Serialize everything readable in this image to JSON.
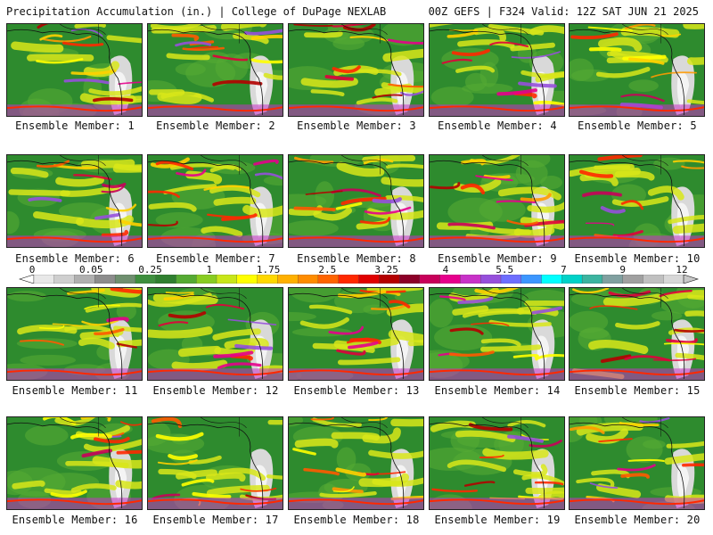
{
  "header": {
    "left": "Precipitation Accumulation (in.) | College of DuPage NEXLAB",
    "right": "00Z GEFS | F324 Valid: 12Z SAT JUN 21 2025"
  },
  "panels": [
    {
      "caption": "Ensemble Member: 1"
    },
    {
      "caption": "Ensemble Member: 2"
    },
    {
      "caption": "Ensemble Member: 3"
    },
    {
      "caption": "Ensemble Member: 4"
    },
    {
      "caption": "Ensemble Member: 5"
    },
    {
      "caption": "Ensemble Member: 6"
    },
    {
      "caption": "Ensemble Member: 7"
    },
    {
      "caption": "Ensemble Member: 8"
    },
    {
      "caption": "Ensemble Member: 9"
    },
    {
      "caption": "Ensemble Member: 10"
    },
    {
      "caption": "Ensemble Member: 11"
    },
    {
      "caption": "Ensemble Member: 12"
    },
    {
      "caption": "Ensemble Member: 13"
    },
    {
      "caption": "Ensemble Member: 14"
    },
    {
      "caption": "Ensemble Member: 15"
    },
    {
      "caption": "Ensemble Member: 16"
    },
    {
      "caption": "Ensemble Member: 17"
    },
    {
      "caption": "Ensemble Member: 18"
    },
    {
      "caption": "Ensemble Member: 19"
    },
    {
      "caption": "Ensemble Member: 20"
    }
  ],
  "colorbar": {
    "labels": [
      "0",
      "0.05",
      "0.25",
      "1",
      "1.75",
      "2.5",
      "3.25",
      "4",
      "5.5",
      "7",
      "9",
      "12"
    ],
    "colors": [
      "#e8e8e8",
      "#cfcfcf",
      "#b0b0b0",
      "#8c8c8c",
      "#6f8f6f",
      "#3e8f3e",
      "#2f7f2f",
      "#55aa33",
      "#88cc22",
      "#c8e619",
      "#ffff00",
      "#ffd800",
      "#ffb000",
      "#ff8c00",
      "#ff6400",
      "#ff2800",
      "#e00000",
      "#b40000",
      "#8c0028",
      "#c8005a",
      "#e6008c",
      "#c832c8",
      "#9650dc",
      "#6e6eff",
      "#3c96ff",
      "#00ffff",
      "#00d2c8",
      "#3cb4a0",
      "#80a0a0",
      "#a0a0a0",
      "#c0c0c0",
      "#d8d8d8"
    ]
  }
}
